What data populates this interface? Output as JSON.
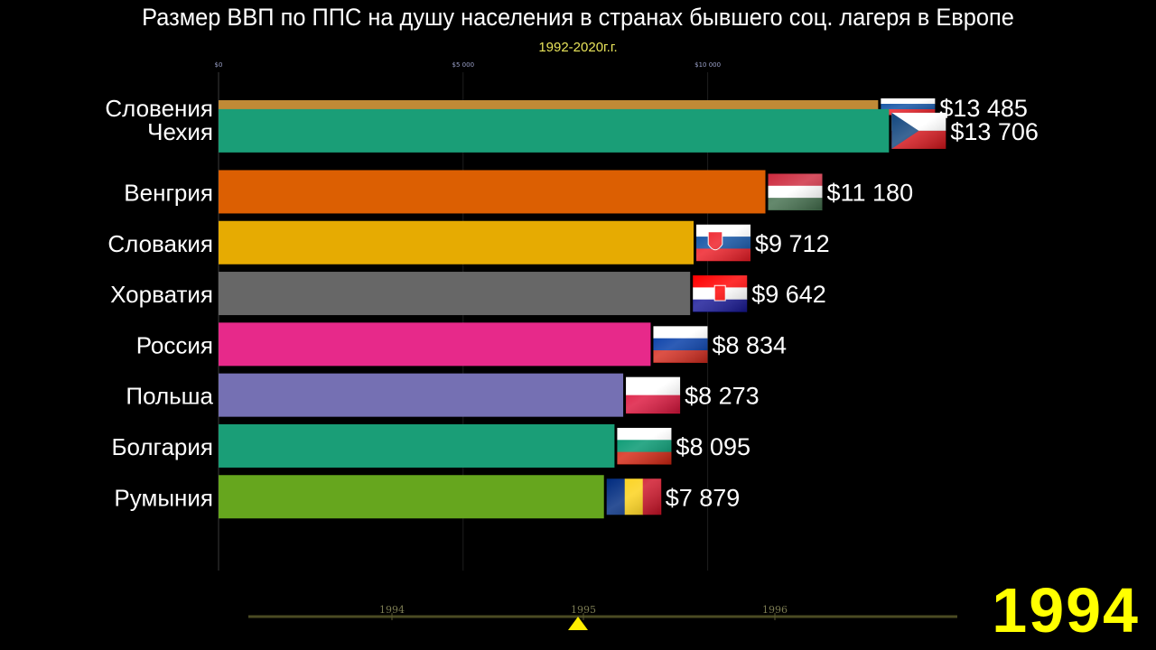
{
  "title": "Размер ВВП по ППС на душу населения в странах бывшего соц. лагеря в Европе",
  "subtitle": "1992-2020г.г.",
  "current_year": "1994",
  "chart_data": {
    "type": "bar",
    "orientation": "horizontal",
    "x_ticks": [
      {
        "value": 0,
        "label": "$0"
      },
      {
        "value": 5000,
        "label": "$5 000"
      },
      {
        "value": 10000,
        "label": "$10 000"
      }
    ],
    "xlim": [
      0,
      13800
    ],
    "grid": true,
    "bars": [
      {
        "country": "Словения",
        "value": 13485,
        "label": "$13 485",
        "color": "#c08a36",
        "flag": "slovenia-flag",
        "rank": 0
      },
      {
        "country": "Чехия",
        "value": 13706,
        "label": "$13 706",
        "color": "#1a9e77",
        "flag": "czech-flag",
        "rank": 0.3
      },
      {
        "country": "Венгрия",
        "value": 11180,
        "label": "$11 180",
        "color": "#dc5f02",
        "flag": "hungary-flag",
        "rank": 1.5
      },
      {
        "country": "Словакия",
        "value": 9712,
        "label": "$9 712",
        "color": "#e6ab02",
        "flag": "slovakia-flag",
        "rank": 2.5
      },
      {
        "country": "Хорватия",
        "value": 9642,
        "label": "$9 642",
        "color": "#676767",
        "flag": "croatia-flag",
        "rank": 3.5
      },
      {
        "country": "Россия",
        "value": 8834,
        "label": "$8 834",
        "color": "#e7298a",
        "flag": "russia-flag",
        "rank": 4.5
      },
      {
        "country": "Польша",
        "value": 8273,
        "label": "$8 273",
        "color": "#7570b3",
        "flag": "poland-flag",
        "rank": 5.5
      },
      {
        "country": "Болгария",
        "value": 8095,
        "label": "$8 095",
        "color": "#1a9e77",
        "flag": "bulgaria-flag",
        "rank": 6.5
      },
      {
        "country": "Румыния",
        "value": 7879,
        "label": "$7 879",
        "color": "#66a61e",
        "flag": "romania-flag",
        "rank": 7.5
      }
    ]
  },
  "timeline": {
    "years": [
      "1994",
      "1995",
      "1996"
    ],
    "marker_year": "1995"
  }
}
